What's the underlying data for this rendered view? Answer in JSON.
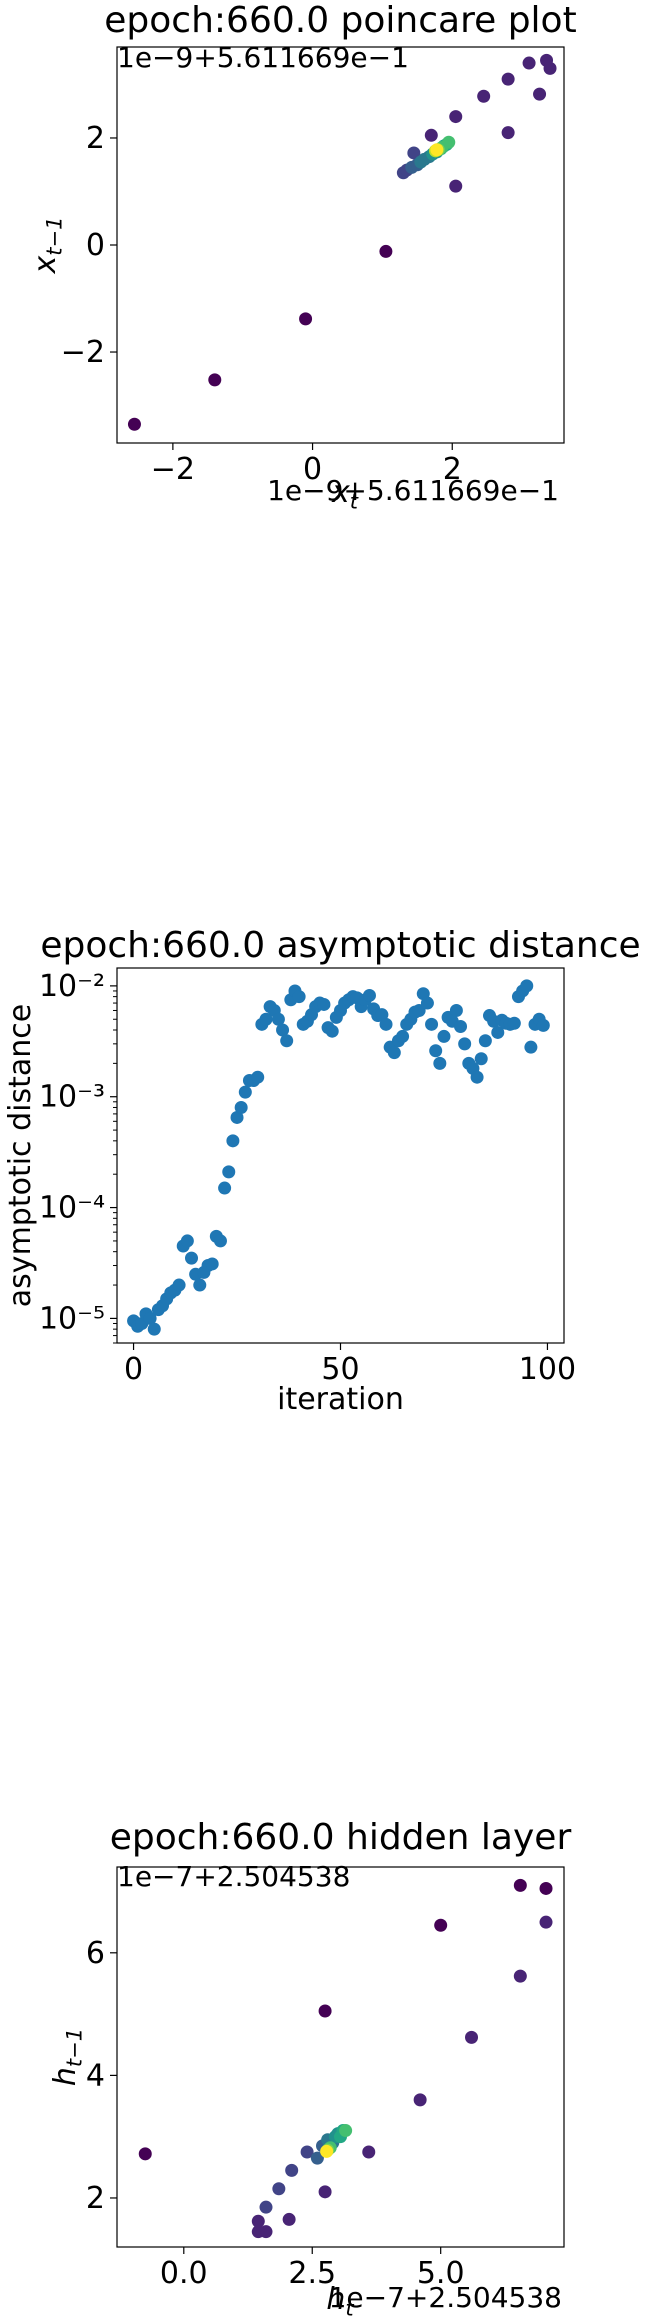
{
  "chart_data": [
    {
      "type": "scatter",
      "title": "epoch:660.0 poincare plot",
      "xlabel": "x_t",
      "ylabel": "x_{t−1}",
      "x_offset_text": "1e−9+5.611669e−1",
      "y_offset_text": "1e−9+5.611669e−1",
      "xlim": [
        -2.8,
        3.6
      ],
      "ylim": [
        -3.7,
        3.7
      ],
      "xticks": [
        -2,
        0,
        2
      ],
      "xtick_labels": [
        "−2",
        "0",
        "2"
      ],
      "yticks": [
        -2,
        0,
        2
      ],
      "ytick_labels": [
        "−2",
        "0",
        "2"
      ],
      "colormap": "viridis",
      "points": [
        {
          "x": -2.55,
          "y": -3.35,
          "c": 0.0
        },
        {
          "x": -1.4,
          "y": -2.52,
          "c": 0.0
        },
        {
          "x": -0.1,
          "y": -1.38,
          "c": 0.02
        },
        {
          "x": 1.05,
          "y": -0.12,
          "c": 0.03
        },
        {
          "x": 2.05,
          "y": 1.1,
          "c": 0.05
        },
        {
          "x": 2.8,
          "y": 2.1,
          "c": 0.06
        },
        {
          "x": 1.7,
          "y": 2.05,
          "c": 0.07
        },
        {
          "x": 2.05,
          "y": 2.4,
          "c": 0.08
        },
        {
          "x": 2.45,
          "y": 2.78,
          "c": 0.09
        },
        {
          "x": 2.8,
          "y": 3.1,
          "c": 0.1
        },
        {
          "x": 3.1,
          "y": 3.4,
          "c": 0.11
        },
        {
          "x": 3.35,
          "y": 3.45,
          "c": 0.12
        },
        {
          "x": 3.4,
          "y": 3.3,
          "c": 0.13
        },
        {
          "x": 3.25,
          "y": 2.82,
          "c": 0.14
        },
        {
          "x": 1.45,
          "y": 1.72,
          "c": 0.15
        },
        {
          "x": 1.3,
          "y": 1.35,
          "c": 0.2
        },
        {
          "x": 1.35,
          "y": 1.4,
          "c": 0.24
        },
        {
          "x": 1.42,
          "y": 1.45,
          "c": 0.28
        },
        {
          "x": 1.5,
          "y": 1.5,
          "c": 0.32
        },
        {
          "x": 1.55,
          "y": 1.55,
          "c": 0.36
        },
        {
          "x": 1.6,
          "y": 1.6,
          "c": 0.4
        },
        {
          "x": 1.67,
          "y": 1.65,
          "c": 0.44
        },
        {
          "x": 1.72,
          "y": 1.7,
          "c": 0.48
        },
        {
          "x": 1.78,
          "y": 1.74,
          "c": 0.52
        },
        {
          "x": 1.84,
          "y": 1.8,
          "c": 0.56
        },
        {
          "x": 1.88,
          "y": 1.85,
          "c": 0.6
        },
        {
          "x": 1.92,
          "y": 1.88,
          "c": 0.64
        },
        {
          "x": 1.95,
          "y": 1.92,
          "c": 0.68
        },
        {
          "x": 1.85,
          "y": 1.82,
          "c": 0.72
        },
        {
          "x": 1.8,
          "y": 1.78,
          "c": 0.8
        },
        {
          "x": 1.76,
          "y": 1.76,
          "c": 0.9
        },
        {
          "x": 1.78,
          "y": 1.78,
          "c": 1.0
        }
      ]
    },
    {
      "type": "scatter",
      "title": "epoch:660.0 asymptotic distance",
      "xlabel": "iteration",
      "ylabel": "asymptotic distance",
      "yscale": "log",
      "xlim": [
        -4,
        104
      ],
      "ylim": [
        6e-06,
        0.0145
      ],
      "xticks": [
        0,
        50,
        100
      ],
      "xtick_labels": [
        "0",
        "50",
        "100"
      ],
      "yticks": [
        1e-05,
        0.0001,
        0.001,
        0.01
      ],
      "ytick_labels": [
        "10⁻⁵",
        "10⁻⁴",
        "10⁻³",
        "10⁻²"
      ],
      "color": "#1f77b4",
      "x": [
        0,
        1,
        2,
        3,
        4,
        5,
        6,
        7,
        8,
        9,
        10,
        11,
        12,
        13,
        14,
        15,
        16,
        17,
        18,
        19,
        20,
        21,
        22,
        23,
        24,
        25,
        26,
        27,
        28,
        29,
        30,
        31,
        32,
        33,
        34,
        35,
        36,
        37,
        38,
        39,
        40,
        41,
        42,
        43,
        44,
        45,
        46,
        47,
        48,
        49,
        50,
        51,
        52,
        53,
        54,
        55,
        56,
        57,
        58,
        59,
        60,
        61,
        62,
        63,
        64,
        65,
        66,
        67,
        68,
        69,
        70,
        71,
        72,
        73,
        74,
        75,
        76,
        77,
        78,
        79,
        80,
        81,
        82,
        83,
        84,
        85,
        86,
        87,
        88,
        89,
        90,
        91,
        92,
        93,
        94,
        95,
        96,
        97,
        98,
        99
      ],
      "y": [
        9.5e-06,
        8.5e-06,
        9e-06,
        1.1e-05,
        1e-05,
        8e-06,
        1.2e-05,
        1.3e-05,
        1.5e-05,
        1.7e-05,
        1.8e-05,
        2e-05,
        4.5e-05,
        5e-05,
        3.5e-05,
        2.5e-05,
        2e-05,
        2.6e-05,
        3e-05,
        3.1e-05,
        5.5e-05,
        5e-05,
        0.00015,
        0.00021,
        0.0004,
        0.00065,
        0.0008,
        0.0011,
        0.0014,
        0.0014,
        0.0015,
        0.0045,
        0.005,
        0.0065,
        0.006,
        0.005,
        0.004,
        0.0032,
        0.0075,
        0.009,
        0.008,
        0.0045,
        0.0048,
        0.0055,
        0.0065,
        0.007,
        0.0068,
        0.0042,
        0.0039,
        0.0052,
        0.006,
        0.007,
        0.0075,
        0.008,
        0.0078,
        0.0065,
        0.0075,
        0.0082,
        0.0062,
        0.0054,
        0.0055,
        0.0045,
        0.0028,
        0.0025,
        0.0032,
        0.0035,
        0.0045,
        0.005,
        0.0058,
        0.006,
        0.0085,
        0.007,
        0.0045,
        0.0026,
        0.002,
        0.0035,
        0.0052,
        0.0048,
        0.006,
        0.0043,
        0.003,
        0.002,
        0.0018,
        0.0015,
        0.0022,
        0.0032,
        0.0054,
        0.0048,
        0.0038,
        0.0049,
        0.0046,
        0.0045,
        0.0046,
        0.008,
        0.009,
        0.01,
        0.0028,
        0.0045,
        0.005,
        0.0044
      ]
    },
    {
      "type": "scatter",
      "title": "epoch:660.0 hidden layer",
      "xlabel": "h_t",
      "ylabel": "h_{t−1}",
      "x_offset_text": "1e−7+2.504538",
      "y_offset_text": "1e−7+2.504538",
      "xlim": [
        -1.3,
        7.4
      ],
      "ylim": [
        1.2,
        7.4
      ],
      "xticks": [
        0,
        2.5,
        5
      ],
      "xtick_labels": [
        "0.0",
        "2.5",
        "5.0"
      ],
      "yticks": [
        2,
        4,
        6
      ],
      "ytick_labels": [
        "2",
        "4",
        "6"
      ],
      "colormap": "viridis",
      "points": [
        {
          "x": -0.75,
          "y": 2.72,
          "c": 0.0
        },
        {
          "x": 2.75,
          "y": 5.05,
          "c": 0.0
        },
        {
          "x": 5.0,
          "y": 6.45,
          "c": 0.02
        },
        {
          "x": 6.55,
          "y": 7.1,
          "c": 0.03
        },
        {
          "x": 7.05,
          "y": 7.05,
          "c": 0.04
        },
        {
          "x": 7.05,
          "y": 6.5,
          "c": 0.05
        },
        {
          "x": 6.55,
          "y": 5.62,
          "c": 0.06
        },
        {
          "x": 5.6,
          "y": 4.62,
          "c": 0.07
        },
        {
          "x": 4.6,
          "y": 3.6,
          "c": 0.08
        },
        {
          "x": 3.6,
          "y": 2.75,
          "c": 0.09
        },
        {
          "x": 2.75,
          "y": 2.1,
          "c": 0.1
        },
        {
          "x": 2.05,
          "y": 1.65,
          "c": 0.11
        },
        {
          "x": 1.6,
          "y": 1.45,
          "c": 0.12
        },
        {
          "x": 1.45,
          "y": 1.45,
          "c": 0.13
        },
        {
          "x": 1.45,
          "y": 1.62,
          "c": 0.14
        },
        {
          "x": 1.6,
          "y": 1.85,
          "c": 0.15
        },
        {
          "x": 1.85,
          "y": 2.15,
          "c": 0.16
        },
        {
          "x": 2.1,
          "y": 2.45,
          "c": 0.17
        },
        {
          "x": 2.4,
          "y": 2.75,
          "c": 0.18
        },
        {
          "x": 2.6,
          "y": 2.65,
          "c": 0.25
        },
        {
          "x": 2.7,
          "y": 2.85,
          "c": 0.3
        },
        {
          "x": 2.8,
          "y": 2.95,
          "c": 0.35
        },
        {
          "x": 2.9,
          "y": 2.9,
          "c": 0.4
        },
        {
          "x": 2.95,
          "y": 3.0,
          "c": 0.45
        },
        {
          "x": 3.0,
          "y": 3.05,
          "c": 0.5
        },
        {
          "x": 3.05,
          "y": 3.0,
          "c": 0.55
        },
        {
          "x": 3.1,
          "y": 3.1,
          "c": 0.6
        },
        {
          "x": 3.15,
          "y": 3.1,
          "c": 0.65
        },
        {
          "x": 2.85,
          "y": 2.82,
          "c": 0.7
        },
        {
          "x": 2.8,
          "y": 2.78,
          "c": 0.8
        },
        {
          "x": 2.78,
          "y": 2.76,
          "c": 1.0
        }
      ]
    }
  ]
}
